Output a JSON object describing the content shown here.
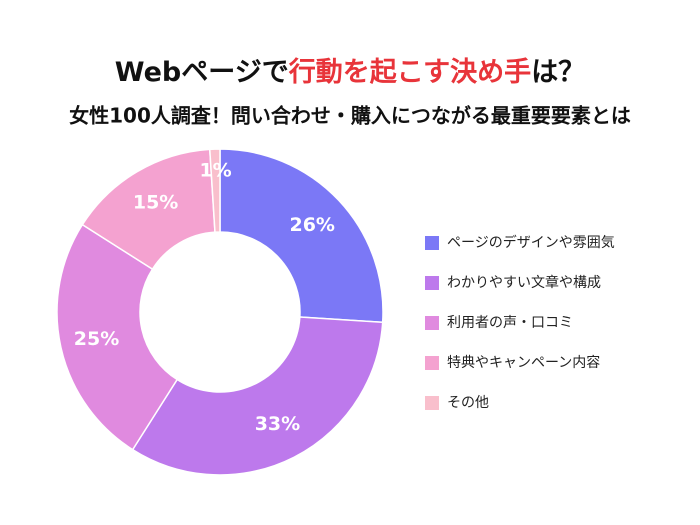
{
  "chart_data": {
    "type": "donut",
    "title": [
      "Webページで",
      "行動を起こす決め手",
      "は？"
    ],
    "subtitle": "女性100人調査！問い合わせ・購入につながる最重要要素とは",
    "categories": [
      "ページのデザインや雰囲気",
      "わかりやすい文章や構成",
      "利用者の声・口コミ",
      "特典やキャンペーン内容",
      "その他"
    ],
    "values": [
      26,
      33,
      25,
      15,
      1
    ],
    "value_labels": [
      "26%",
      "33%",
      "25%",
      "15%",
      "1%"
    ],
    "colors": [
      "#7b78f6",
      "#bd79ec",
      "#e08adf",
      "#f4a2d0",
      "#f9bfcc"
    ],
    "legend": "right"
  }
}
